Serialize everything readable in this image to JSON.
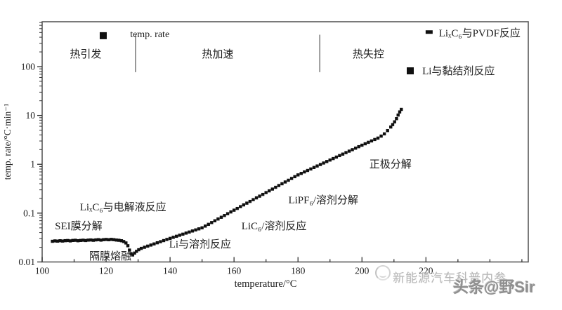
{
  "chart_data": {
    "type": "scatter",
    "marker": "square",
    "marker_color": "#101010",
    "xlabel": "temperature/°C",
    "ylabel": "temp. rate/°C·min⁻¹",
    "xlim": [
      100,
      252
    ],
    "ylim_log": [
      0.01,
      830
    ],
    "x_major_ticks": [
      100,
      120,
      140,
      160,
      180,
      200,
      220
    ],
    "x_minor_step": 10,
    "y_major_ticks": [
      0.01,
      0.1,
      1,
      10,
      100
    ],
    "y_tick_labels": [
      "0.01",
      "0.1",
      "1",
      "10",
      "100"
    ],
    "grid": false,
    "legend_position": "inside-top",
    "legend": [
      {
        "name": "legend-temp-rate",
        "label": "temp. rate",
        "marker": "square",
        "marker_at": [
          119.1,
          430
        ],
        "label_at": [
          127.5,
          470
        ],
        "anchor": "start",
        "size": 14
      },
      {
        "name": "legend-lixc6-pvdf-reaction",
        "label": "LiₓC₆与PVDF反应",
        "marker": "dash",
        "marker_at": [
          221,
          510
        ],
        "label_at": [
          236.8,
          490
        ],
        "anchor": "middle",
        "size": 15
      },
      {
        "name": "legend-li-binder-reaction",
        "label": "Li与黏结剂反应",
        "marker": "square",
        "marker_at": [
          215.1,
          82
        ],
        "label_at": [
          230.2,
          82
        ],
        "anchor": "middle",
        "size": 15
      }
    ],
    "stage_labels": [
      {
        "name": "stage-thermal-initiation-label",
        "text": "热引发",
        "at": [
          113.6,
          180
        ],
        "size": 15
      },
      {
        "name": "stage-thermal-acceleration-label",
        "text": "热加速",
        "at": [
          154.9,
          180
        ],
        "size": 15
      },
      {
        "name": "stage-thermal-runaway-label",
        "text": "热失控",
        "at": [
          202.0,
          180
        ],
        "size": 15
      }
    ],
    "stage_dividers": [
      {
        "x": 129.2,
        "y_from": 450,
        "y_to": 77
      },
      {
        "x": 186.8,
        "y_from": 450,
        "y_to": 77
      }
    ],
    "annotations": [
      {
        "name": "sei-film-decomposition-label",
        "text": "SEI膜分解",
        "at": [
          111.4,
          0.055
        ],
        "size": 15
      },
      {
        "name": "separator-melting-label",
        "text": "隔膜熔融",
        "at": [
          121.3,
          0.0132
        ],
        "size": 15
      },
      {
        "name": "lixc6-electrolyte-reaction-label",
        "text": "LiₓC₆与电解液反应",
        "at": [
          125.3,
          0.134
        ],
        "size": 15
      },
      {
        "name": "li-solvent-reaction-label",
        "text": "Li与溶剂反应",
        "at": [
          149.4,
          0.0232
        ],
        "size": 15
      },
      {
        "name": "lic6-solvent-reaction-label",
        "text": "LiC₆/溶剂反应",
        "at": [
          172.5,
          0.055
        ],
        "size": 15
      },
      {
        "name": "lipf6-solvent-decomposition-label",
        "text": "LiPF₆/溶剂分解",
        "at": [
          187.9,
          0.187
        ],
        "size": 15
      },
      {
        "name": "cathode-decomposition-label",
        "text": "正极分解",
        "at": [
          208.9,
          1.0
        ],
        "size": 15
      }
    ],
    "series": [
      {
        "name": "temp. rate",
        "points": [
          [
            103.2,
            0.0265
          ],
          [
            104,
            0.027
          ],
          [
            104.8,
            0.0267
          ],
          [
            105.6,
            0.0272
          ],
          [
            106.4,
            0.0268
          ],
          [
            107.2,
            0.0273
          ],
          [
            108,
            0.0275
          ],
          [
            108.8,
            0.027
          ],
          [
            109.6,
            0.0276
          ],
          [
            110.4,
            0.0278
          ],
          [
            111.2,
            0.0272
          ],
          [
            112,
            0.0276
          ],
          [
            112.8,
            0.0279
          ],
          [
            113.6,
            0.0275
          ],
          [
            114.4,
            0.028
          ],
          [
            115.2,
            0.0282
          ],
          [
            116,
            0.0278
          ],
          [
            116.8,
            0.0283
          ],
          [
            117.6,
            0.0286
          ],
          [
            118.4,
            0.028
          ],
          [
            119.2,
            0.0286
          ],
          [
            120,
            0.0289
          ],
          [
            120.8,
            0.0285
          ],
          [
            121.6,
            0.029
          ],
          [
            122.4,
            0.0286
          ],
          [
            123.2,
            0.0281
          ],
          [
            124,
            0.0278
          ],
          [
            124.8,
            0.0272
          ],
          [
            125.5,
            0.0262
          ],
          [
            126.2,
            0.0245
          ],
          [
            126.8,
            0.0215
          ],
          [
            127.3,
            0.0175
          ],
          [
            127.8,
            0.0148
          ],
          [
            128.3,
            0.0139
          ],
          [
            128.9,
            0.0152
          ],
          [
            129.5,
            0.0165
          ],
          [
            130.2,
            0.0178
          ],
          [
            131,
            0.019
          ],
          [
            132,
            0.02
          ],
          [
            133,
            0.0211
          ],
          [
            134,
            0.0222
          ],
          [
            135,
            0.0234
          ],
          [
            136,
            0.0247
          ],
          [
            137,
            0.026
          ],
          [
            138,
            0.0274
          ],
          [
            139,
            0.0289
          ],
          [
            140,
            0.0304
          ],
          [
            141,
            0.032
          ],
          [
            142,
            0.0336
          ],
          [
            143,
            0.0353
          ],
          [
            144,
            0.0371
          ],
          [
            145,
            0.039
          ],
          [
            146,
            0.041
          ],
          [
            147,
            0.0431
          ],
          [
            148,
            0.0453
          ],
          [
            149,
            0.0476
          ],
          [
            150,
            0.05
          ],
          [
            151,
            0.0543
          ],
          [
            152,
            0.059
          ],
          [
            153,
            0.0641
          ],
          [
            154,
            0.0697
          ],
          [
            155,
            0.0758
          ],
          [
            156,
            0.0823
          ],
          [
            157,
            0.0895
          ],
          [
            158,
            0.0973
          ],
          [
            159,
            0.1058
          ],
          [
            160,
            0.115
          ],
          [
            161,
            0.1249
          ],
          [
            162,
            0.1357
          ],
          [
            163,
            0.1474
          ],
          [
            164,
            0.1601
          ],
          [
            165,
            0.1739
          ],
          [
            166,
            0.1889
          ],
          [
            167,
            0.2052
          ],
          [
            168,
            0.2229
          ],
          [
            169,
            0.2421
          ],
          [
            170,
            0.263
          ],
          [
            171,
            0.2859
          ],
          [
            172,
            0.3108
          ],
          [
            173,
            0.3379
          ],
          [
            174,
            0.3673
          ],
          [
            175,
            0.3993
          ],
          [
            176,
            0.4341
          ],
          [
            177,
            0.4719
          ],
          [
            178,
            0.513
          ],
          [
            179,
            0.5577
          ],
          [
            180,
            0.6063
          ],
          [
            181,
            0.6503
          ],
          [
            182,
            0.6975
          ],
          [
            183,
            0.7481
          ],
          [
            184,
            0.8024
          ],
          [
            185,
            0.8606
          ],
          [
            186,
            0.923
          ],
          [
            187,
            0.99
          ],
          [
            188,
            1.0618
          ],
          [
            189,
            1.1388
          ],
          [
            190,
            1.2214
          ],
          [
            191,
            1.31
          ],
          [
            192,
            1.405
          ],
          [
            193,
            1.5069
          ],
          [
            194,
            1.6162
          ],
          [
            195,
            1.7335
          ],
          [
            196,
            1.8592
          ],
          [
            197,
            1.9941
          ],
          [
            198,
            2.1387
          ],
          [
            199,
            2.2939
          ],
          [
            200,
            2.4603
          ],
          [
            201,
            2.63
          ],
          [
            202,
            2.82
          ],
          [
            203,
            3.01
          ],
          [
            204,
            3.22
          ],
          [
            205,
            3.44
          ],
          [
            206,
            3.78
          ],
          [
            207,
            4.2
          ],
          [
            208,
            4.9
          ],
          [
            209,
            5.8
          ],
          [
            209.6,
            6.5
          ],
          [
            210.2,
            7.4
          ],
          [
            210.8,
            8.6
          ],
          [
            211.3,
            10.2
          ],
          [
            211.8,
            11.8
          ],
          [
            212.3,
            13.3
          ]
        ]
      }
    ]
  },
  "watermark": {
    "site_text": "新能源汽车科普内参",
    "author_text": "头条@野Sir"
  }
}
